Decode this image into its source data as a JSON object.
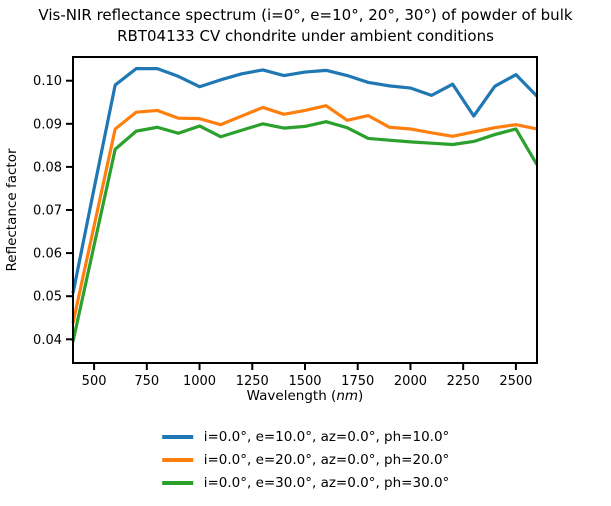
{
  "figure": {
    "title_line1": "Vis-NIR reflectance spectrum (i=0°, e=10°, 20°, 30°) of powder of bulk",
    "title_line2": "RBT04133 CV chondrite under ambient conditions"
  },
  "chart_data": {
    "type": "line",
    "title": "Vis-NIR reflectance spectrum (i=0°, e=10°, 20°, 30°) of powder of bulk RBT04133 CV chondrite under ambient conditions",
    "xlabel": "Wavelength (nm)",
    "xlabel_parts": {
      "prefix": "Wavelength (",
      "italic": "nm",
      "suffix": ")"
    },
    "ylabel": "Reflectance factor",
    "xlim": [
      400,
      2600
    ],
    "ylim": [
      0.0345,
      0.1055
    ],
    "xticks": [
      500,
      750,
      1000,
      1250,
      1500,
      1750,
      2000,
      2250,
      2500
    ],
    "yticks": [
      0.04,
      0.05,
      0.06,
      0.07,
      0.08,
      0.09,
      0.1
    ],
    "ytick_labels": [
      "0.04",
      "0.05",
      "0.06",
      "0.07",
      "0.08",
      "0.09",
      "0.10"
    ],
    "grid": false,
    "legend_position": "below-center",
    "x": [
      400,
      500,
      600,
      700,
      800,
      900,
      1000,
      1100,
      1200,
      1300,
      1400,
      1500,
      1600,
      1700,
      1800,
      1900,
      2000,
      2100,
      2200,
      2300,
      2400,
      2500,
      2600
    ],
    "series": [
      {
        "name": "i=0.0°, e=10.0°, az=0.0°, ph=10.0°",
        "color": "#1f77b4",
        "values": [
          0.0507,
          0.075,
          0.099,
          0.1028,
          0.1028,
          0.101,
          0.0986,
          0.1002,
          0.1016,
          0.1025,
          0.1012,
          0.102,
          0.1024,
          0.1012,
          0.0996,
          0.0988,
          0.0983,
          0.0966,
          0.0992,
          0.0918,
          0.0987,
          0.1014,
          0.0964
        ]
      },
      {
        "name": "i=0.0°, e=20.0°, az=0.0°, ph=20.0°",
        "color": "#ff7f0e",
        "values": [
          0.0438,
          0.0663,
          0.0888,
          0.0927,
          0.0931,
          0.0913,
          0.0912,
          0.0898,
          0.0918,
          0.0938,
          0.0922,
          0.0931,
          0.0942,
          0.0908,
          0.0919,
          0.0892,
          0.0888,
          0.0879,
          0.0871,
          0.0881,
          0.0891,
          0.0898,
          0.0888
        ]
      },
      {
        "name": "i=0.0°, e=30.0°, az=0.0°, ph=30.0°",
        "color": "#2ca02c",
        "values": [
          0.0395,
          0.0618,
          0.0841,
          0.0883,
          0.0892,
          0.0878,
          0.0895,
          0.087,
          0.0885,
          0.09,
          0.089,
          0.0894,
          0.0905,
          0.0891,
          0.0866,
          0.0862,
          0.0858,
          0.0855,
          0.0852,
          0.0859,
          0.0875,
          0.0888,
          0.0805
        ]
      }
    ]
  }
}
